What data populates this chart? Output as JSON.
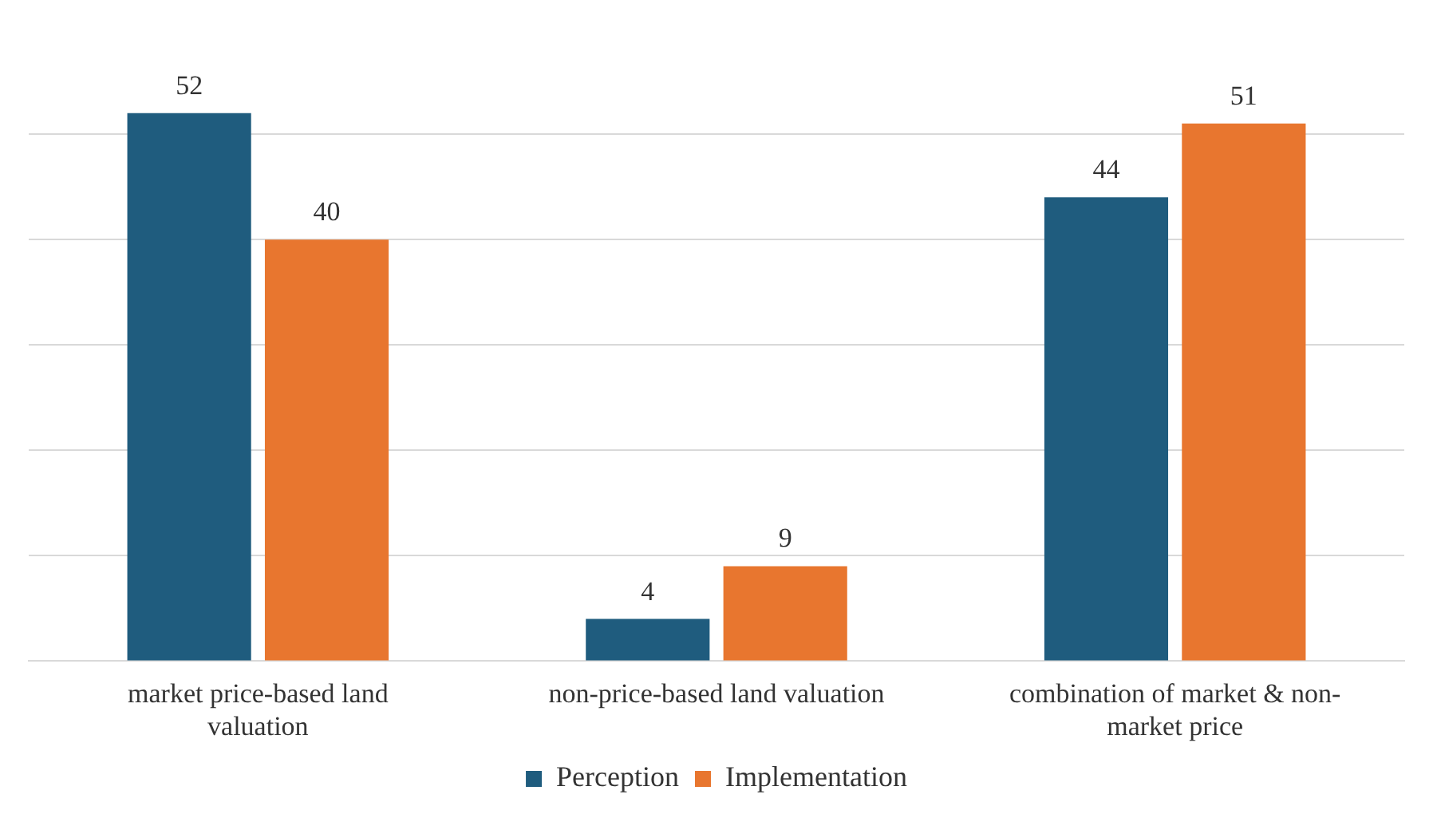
{
  "chart_data": {
    "type": "bar",
    "categories": [
      "market price-based land valuation",
      "non-price-based land valuation",
      "combination of market & non-market price"
    ],
    "series": [
      {
        "name": "Perception",
        "color": "#1f5c7e",
        "values": [
          52,
          4,
          44
        ]
      },
      {
        "name": "Implementation",
        "color": "#e8762f",
        "values": [
          40,
          9,
          51
        ]
      }
    ],
    "yticks": [
      {
        "value": 0,
        "label": null
      },
      {
        "value": 10,
        "label": null
      },
      {
        "value": 20,
        "label": null
      },
      {
        "value": 30,
        "label": null
      },
      {
        "value": 40,
        "label": null
      },
      {
        "value": 50,
        "label": null
      }
    ],
    "tick_labels": "x",
    "grid": "y",
    "legend": "bottom",
    "data_labels": true
  }
}
